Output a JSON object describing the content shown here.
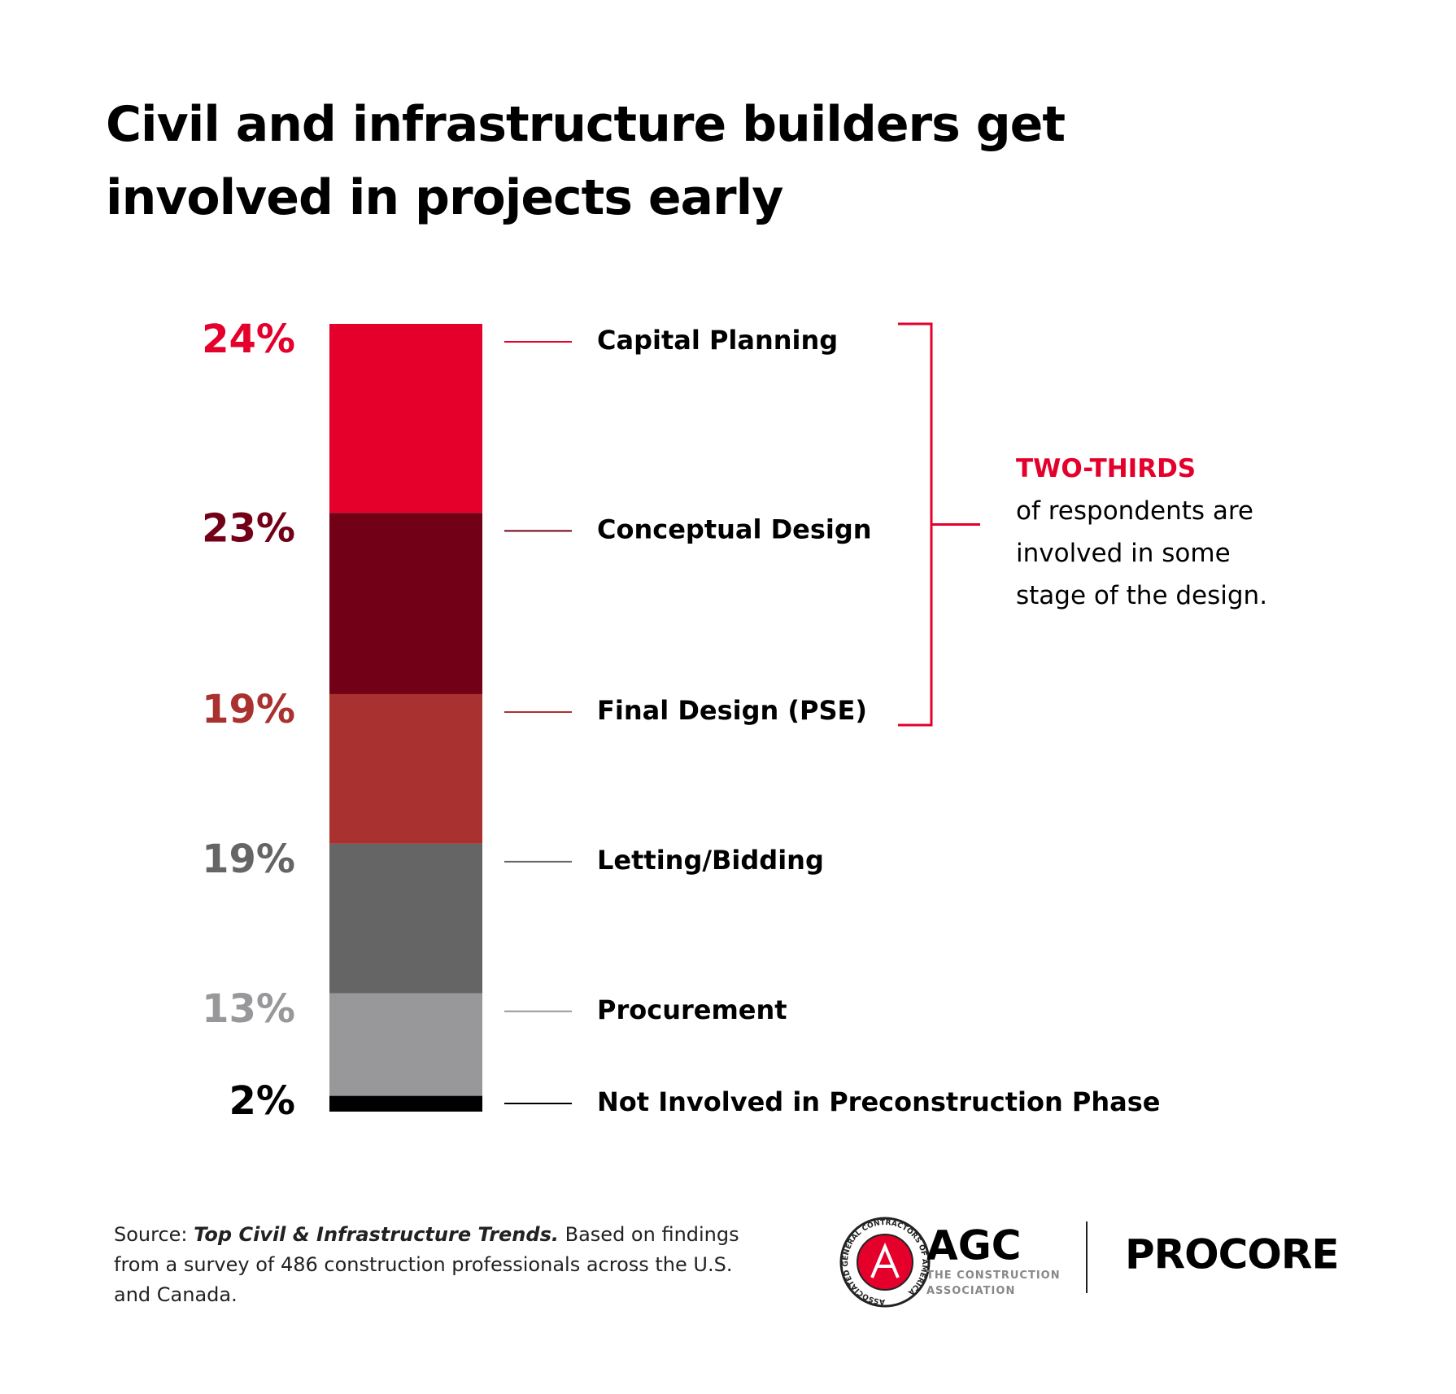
{
  "chart_data": {
    "type": "bar",
    "stacked": true,
    "title": "Civil and infrastructure builders get involved in projects early",
    "categories": [
      "Capital Planning",
      "Conceptual Design",
      "Final Design (PSE)",
      "Letting/Bidding",
      "Procurement",
      "Not Involved in Preconstruction Phase"
    ],
    "values": [
      24,
      23,
      19,
      19,
      13,
      2
    ],
    "value_labels": [
      "24%",
      "23%",
      "19%",
      "19%",
      "13%",
      "2%"
    ],
    "colors": [
      "#e4002b",
      "#720017",
      "#a93230",
      "#656565",
      "#98989a",
      "#000000"
    ],
    "ylim": [
      0,
      100
    ],
    "annotation": {
      "highlight": "TWO-THIRDS",
      "text": "of respondents are involved in some stage of the design.",
      "color": "#e4002b"
    },
    "source": {
      "prefix": "Source:",
      "title": "Top Civil & Infrastructure Trends.",
      "text": "Based on findings from a survey of 486 construction professionals across the U.S. and Canada."
    }
  },
  "logos": {
    "agc_seal": "ASSOCIATED GENERAL CONTRACTORS OF AMERICA",
    "agc": "AGC",
    "agc_subtitle": [
      "THE CONSTRUCTION",
      "ASSOCIATION"
    ],
    "procore": "PROCORE"
  }
}
